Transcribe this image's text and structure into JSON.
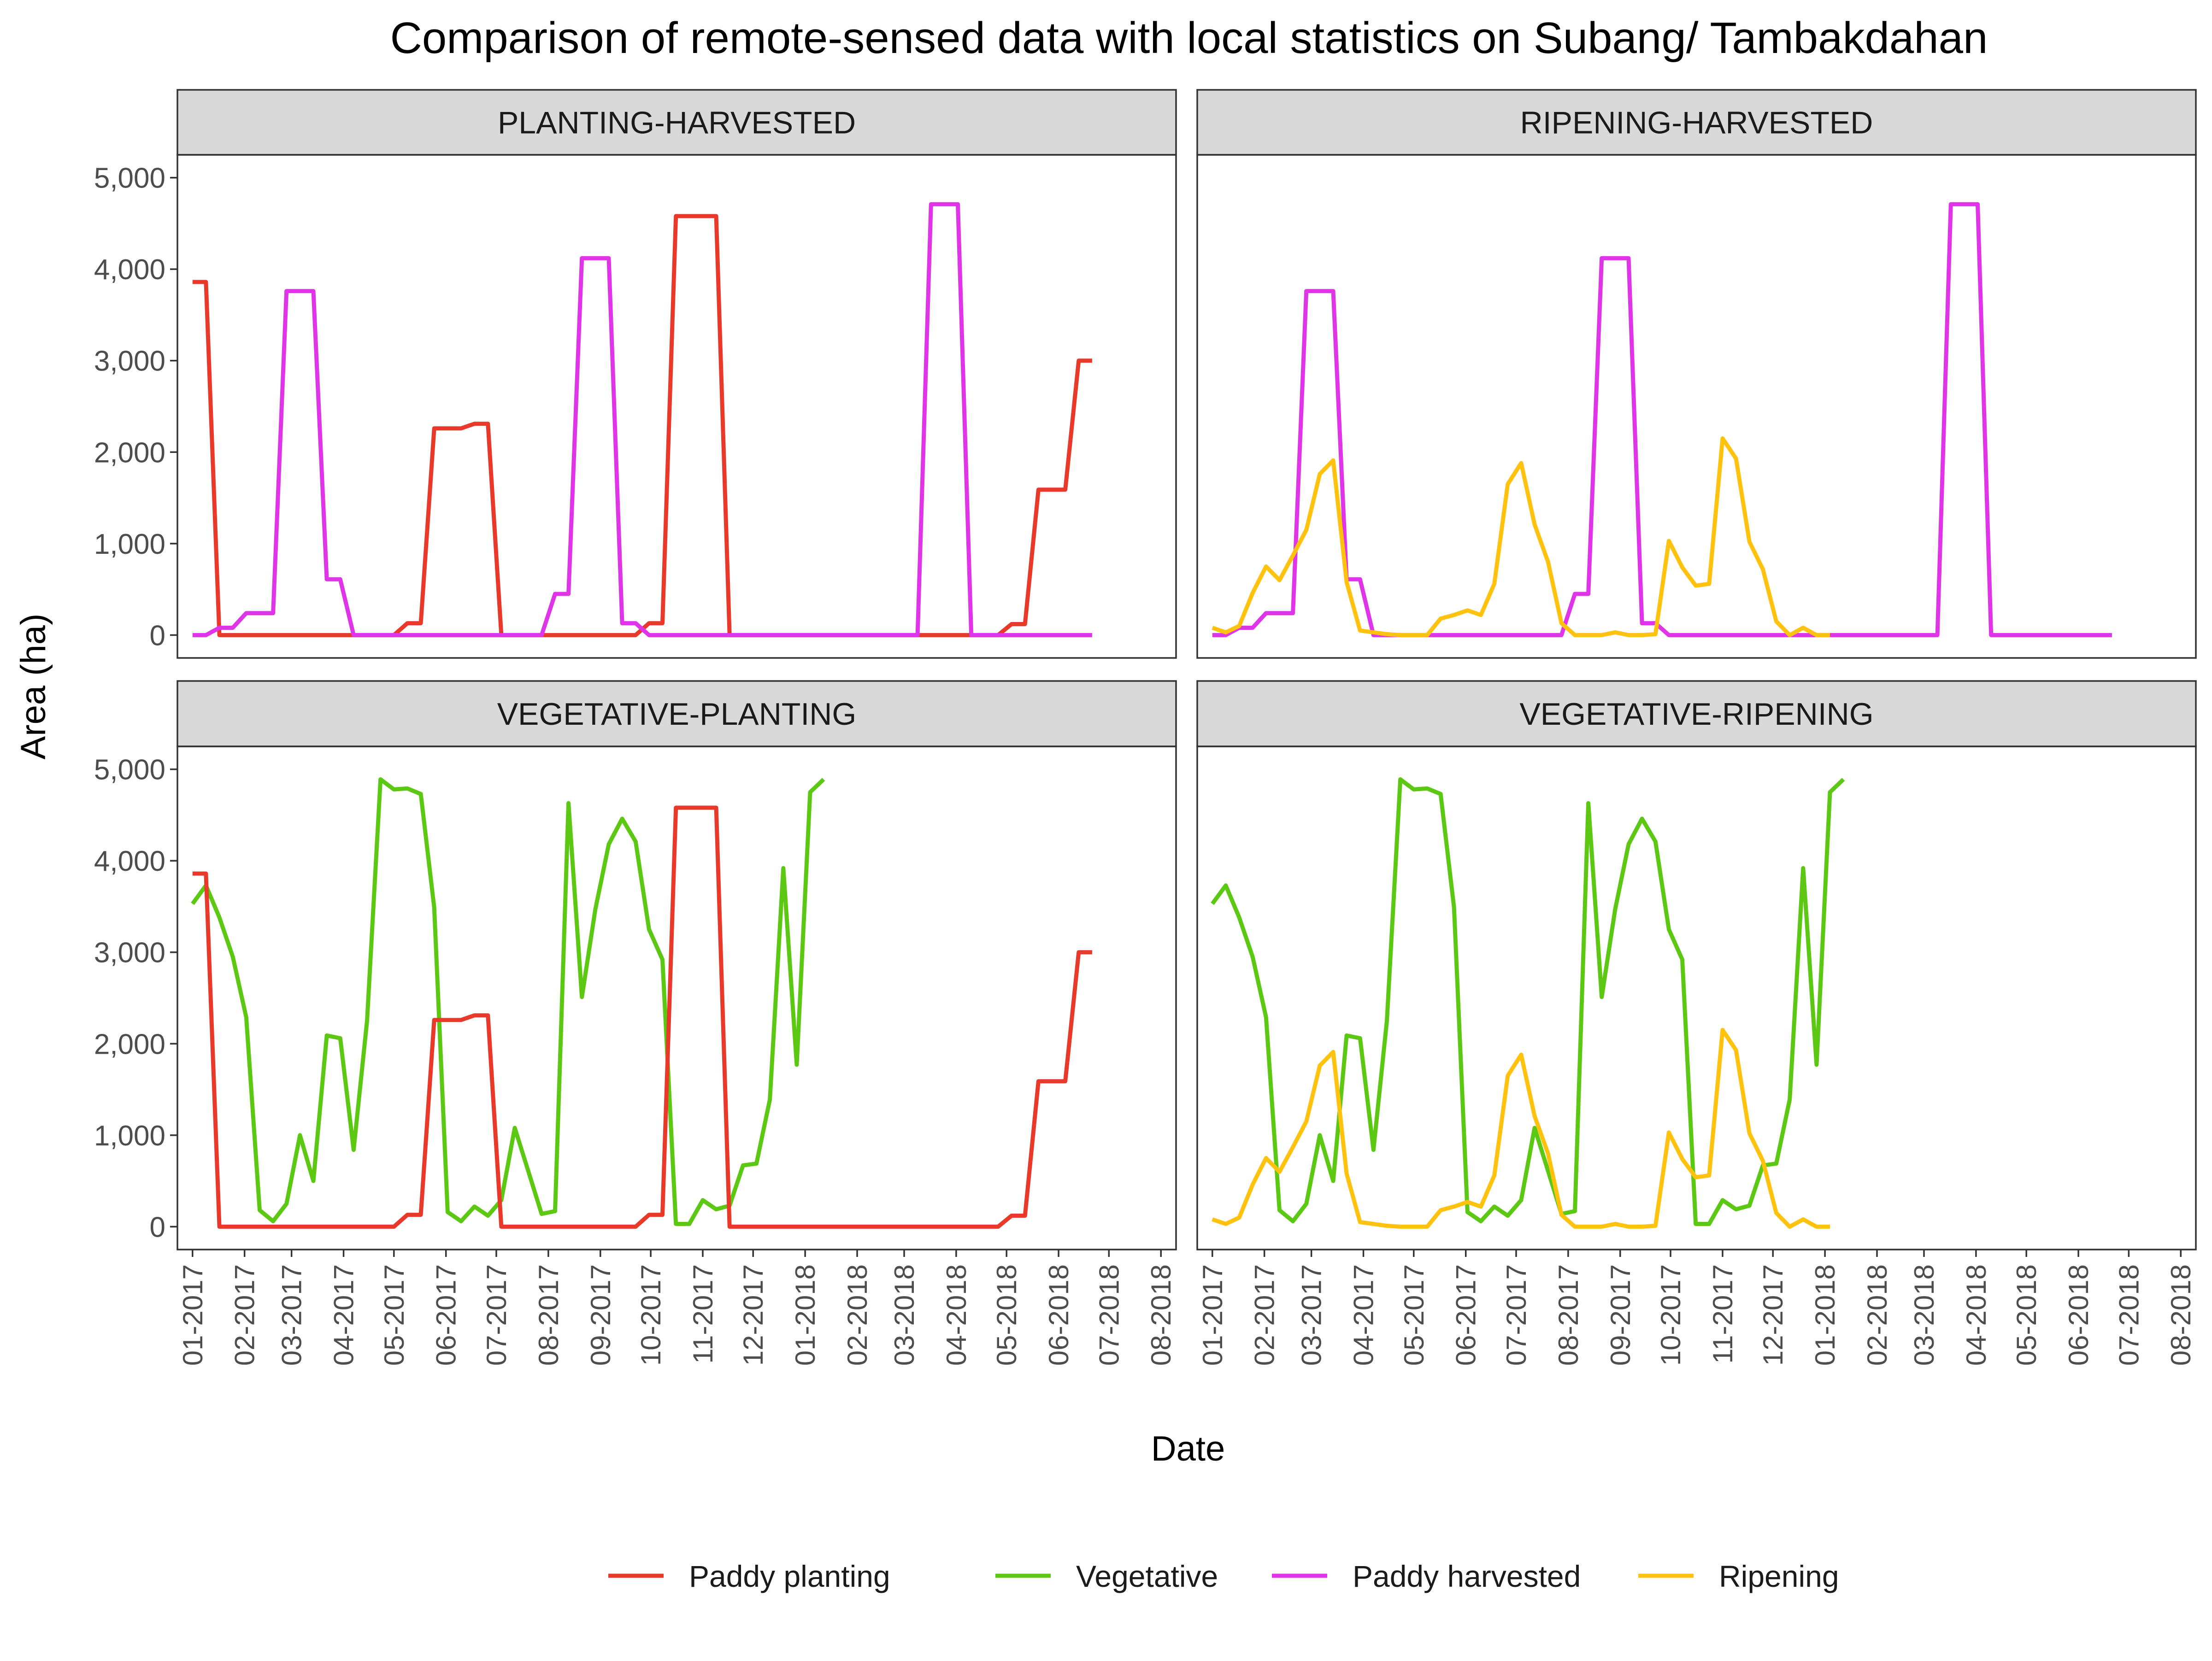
{
  "colors": {
    "paddy_planting": "#e8392a",
    "vegetative": "#5dc814",
    "paddy_harvested": "#df34e8",
    "ripening": "#ffc20e",
    "strip": "#d9d9d9",
    "axis_text": "#4d4d4d"
  },
  "chart_data": {
    "type": "line",
    "title": "Comparison of remote-sensed data with local statistics on Subang/ Tambakdahan",
    "xlabel": "Date",
    "ylabel": "Area (ha)",
    "ylim": [
      -250,
      5250
    ],
    "y_ticks": [
      0,
      1000,
      2000,
      3000,
      4000,
      5000
    ],
    "y_tick_labels": [
      "0",
      "1,000",
      "2,000",
      "3,000",
      "4,000",
      "5,000"
    ],
    "x_tick_labels": [
      "01-2017",
      "02-2017",
      "03-2017",
      "04-2017",
      "05-2017",
      "06-2017",
      "07-2017",
      "08-2017",
      "09-2017",
      "10-2017",
      "11-2017",
      "12-2017",
      "01-2018",
      "02-2018",
      "03-2018",
      "04-2018",
      "05-2018",
      "06-2018",
      "07-2018",
      "08-2018"
    ],
    "x_start": "2017-01-01",
    "x_step_days": 8,
    "grid": false,
    "legend_position": "bottom",
    "legend": [
      {
        "key": "paddy_planting",
        "name": "Paddy planting"
      },
      {
        "key": "vegetative",
        "name": "Vegetative"
      },
      {
        "key": "paddy_harvested",
        "name": "Paddy harvested"
      },
      {
        "key": "ripening",
        "name": "Ripening"
      }
    ],
    "series": {
      "paddy_planting": [
        3860,
        3860,
        0,
        0,
        0,
        0,
        0,
        0,
        0,
        0,
        0,
        0,
        0,
        0,
        0,
        0,
        130,
        130,
        2260,
        2260,
        2260,
        2310,
        2310,
        0,
        0,
        0,
        0,
        0,
        0,
        0,
        0,
        0,
        0,
        0,
        130,
        130,
        4580,
        4580,
        4580,
        4580,
        0,
        0,
        0,
        0,
        0,
        0,
        0,
        0,
        0,
        0,
        0,
        0,
        0,
        0,
        0,
        0,
        0,
        0,
        0,
        0,
        0,
        120,
        120,
        1590,
        1590,
        1590,
        3000,
        3000
      ],
      "paddy_harvested": [
        0,
        0,
        80,
        80,
        240,
        240,
        240,
        3760,
        3760,
        3760,
        610,
        610,
        0,
        0,
        0,
        0,
        0,
        0,
        0,
        0,
        0,
        0,
        0,
        0,
        0,
        0,
        0,
        450,
        450,
        4120,
        4120,
        4120,
        130,
        130,
        0,
        0,
        0,
        0,
        0,
        0,
        0,
        0,
        0,
        0,
        0,
        0,
        0,
        0,
        0,
        0,
        0,
        0,
        0,
        0,
        0,
        4710,
        4710,
        4710,
        0,
        0,
        0,
        0,
        0,
        0,
        0,
        0,
        0,
        0
      ],
      "vegetative": [
        3530,
        3730,
        3380,
        2950,
        2290,
        180,
        60,
        250,
        1000,
        500,
        2090,
        2060,
        840,
        2250,
        4890,
        4780,
        4790,
        4730,
        3490,
        160,
        60,
        220,
        120,
        290,
        1080,
        610,
        140,
        170,
        4630,
        2510,
        3470,
        4180,
        4460,
        4210,
        3250,
        2920,
        30,
        30,
        290,
        190,
        230,
        670,
        690,
        1390,
        3920,
        1770,
        4750,
        4890
      ],
      "ripening": [
        80,
        30,
        100,
        460,
        750,
        600,
        870,
        1150,
        1760,
        1910,
        580,
        50,
        30,
        10,
        0,
        0,
        0,
        180,
        220,
        270,
        220,
        560,
        1650,
        1880,
        1210,
        800,
        130,
        0,
        0,
        0,
        30,
        0,
        0,
        10,
        1030,
        740,
        540,
        560,
        2150,
        1930,
        1020,
        720,
        150,
        0,
        80,
        0,
        0
      ]
    },
    "panels": [
      {
        "title": "PLANTING-HARVESTED",
        "series": [
          "paddy_planting",
          "paddy_harvested"
        ]
      },
      {
        "title": "RIPENING-HARVESTED",
        "series": [
          "paddy_harvested",
          "ripening"
        ]
      },
      {
        "title": "VEGETATIVE-PLANTING",
        "series": [
          "vegetative",
          "paddy_planting"
        ]
      },
      {
        "title": "VEGETATIVE-RIPENING",
        "series": [
          "vegetative",
          "ripening"
        ]
      }
    ]
  }
}
